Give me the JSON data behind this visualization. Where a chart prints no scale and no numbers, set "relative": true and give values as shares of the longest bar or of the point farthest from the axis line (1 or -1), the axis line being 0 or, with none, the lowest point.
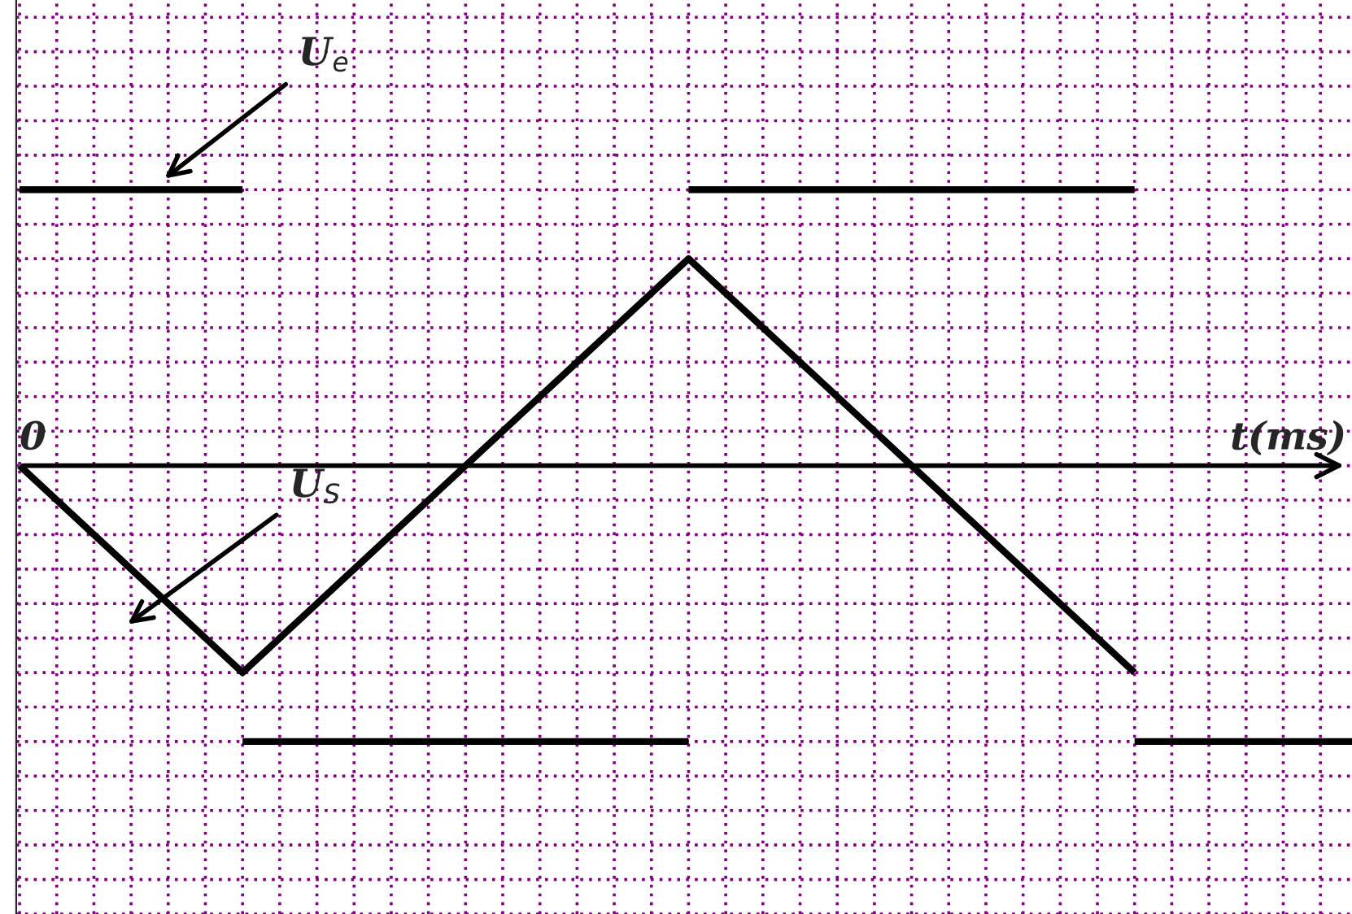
{
  "chart_data": {
    "type": "line",
    "relative": true,
    "xlabel": "t(ms)",
    "annotations": [
      "0"
    ],
    "categories": [
      null,
      null,
      null,
      null,
      null,
      null,
      null,
      null,
      null,
      null,
      null,
      null,
      null
    ],
    "series": [
      {
        "name": "U$_{e}$",
        "color": "#000000",
        "values": [
          1,
          1,
          1,
          null,
          null,
          null,
          1,
          1,
          1,
          1,
          1,
          null,
          null
        ]
      },
      {
        "color": "#000000",
        "values": [
          null,
          null,
          -1,
          -1,
          -1,
          -1,
          -1,
          null,
          null,
          null,
          -1,
          -1,
          -1
        ]
      },
      {
        "name": "U$_{S}$",
        "color": "#000000",
        "values": [
          0,
          -0.375,
          -0.75,
          -0.375,
          0,
          0.375,
          0.75,
          0.375,
          0,
          -0.375,
          -0.75,
          null,
          null
        ]
      }
    ],
    "grid": true,
    "legend": false,
    "marker": "none",
    "line_style": "solid"
  }
}
